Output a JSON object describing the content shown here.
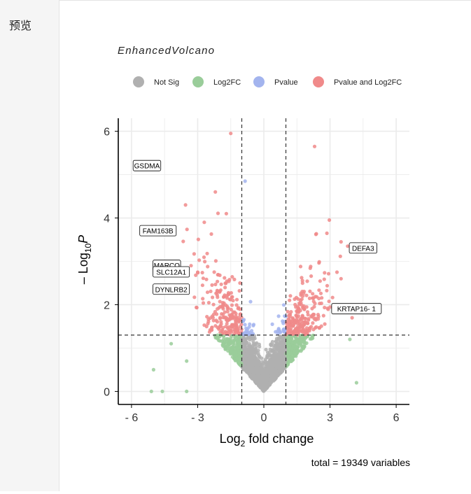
{
  "sidebar": {
    "label": "预览"
  },
  "chart_data": {
    "type": "scatter",
    "title": "EnhancedVolcano",
    "xlabel_main": "Log",
    "xlabel_sub": "2",
    "xlabel_rest": " fold change",
    "ylabel_prefix": "– Log",
    "ylabel_sub": "10",
    "ylabel_var": "P",
    "caption": "total = 19349 variables",
    "xlim": [
      -6.6,
      6.6
    ],
    "ylim": [
      -0.3,
      6.3
    ],
    "x_ticks": [
      -6,
      -3,
      0,
      3,
      6
    ],
    "x_tick_labels": [
      "- 6",
      "- 3",
      "0",
      "3",
      "6"
    ],
    "y_ticks": [
      0,
      2,
      4,
      6
    ],
    "y_tick_labels": [
      "0",
      "2",
      "4",
      "6"
    ],
    "fc_cutoff": 1,
    "p_cutoff_log": 1.3,
    "grid": true,
    "legend_position": "top",
    "legend": [
      {
        "name": "Not Sig",
        "color": "#b0b0b0"
      },
      {
        "name": "Log2FC",
        "color": "#9acd9a"
      },
      {
        "name": "Pvalue",
        "color": "#a3b4ee"
      },
      {
        "name": "Pvalue and Log2FC",
        "color": "#f08a8a"
      }
    ],
    "labels": [
      {
        "text": "GSDMA",
        "x": -5.3,
        "y": 5.2
      },
      {
        "text": "FAM163B",
        "x": -4.8,
        "y": 3.7
      },
      {
        "text": "MARCO",
        "x": -4.4,
        "y": 2.9
      },
      {
        "text": "SLC12A1",
        "x": -4.2,
        "y": 2.75
      },
      {
        "text": "DYNLRB2",
        "x": -4.2,
        "y": 2.35
      },
      {
        "text": "DEFA3",
        "x": 4.5,
        "y": 3.3
      },
      {
        "text": "KRTAP16- 1",
        "x": 4.2,
        "y": 1.9
      }
    ],
    "n_points": 19349
  }
}
